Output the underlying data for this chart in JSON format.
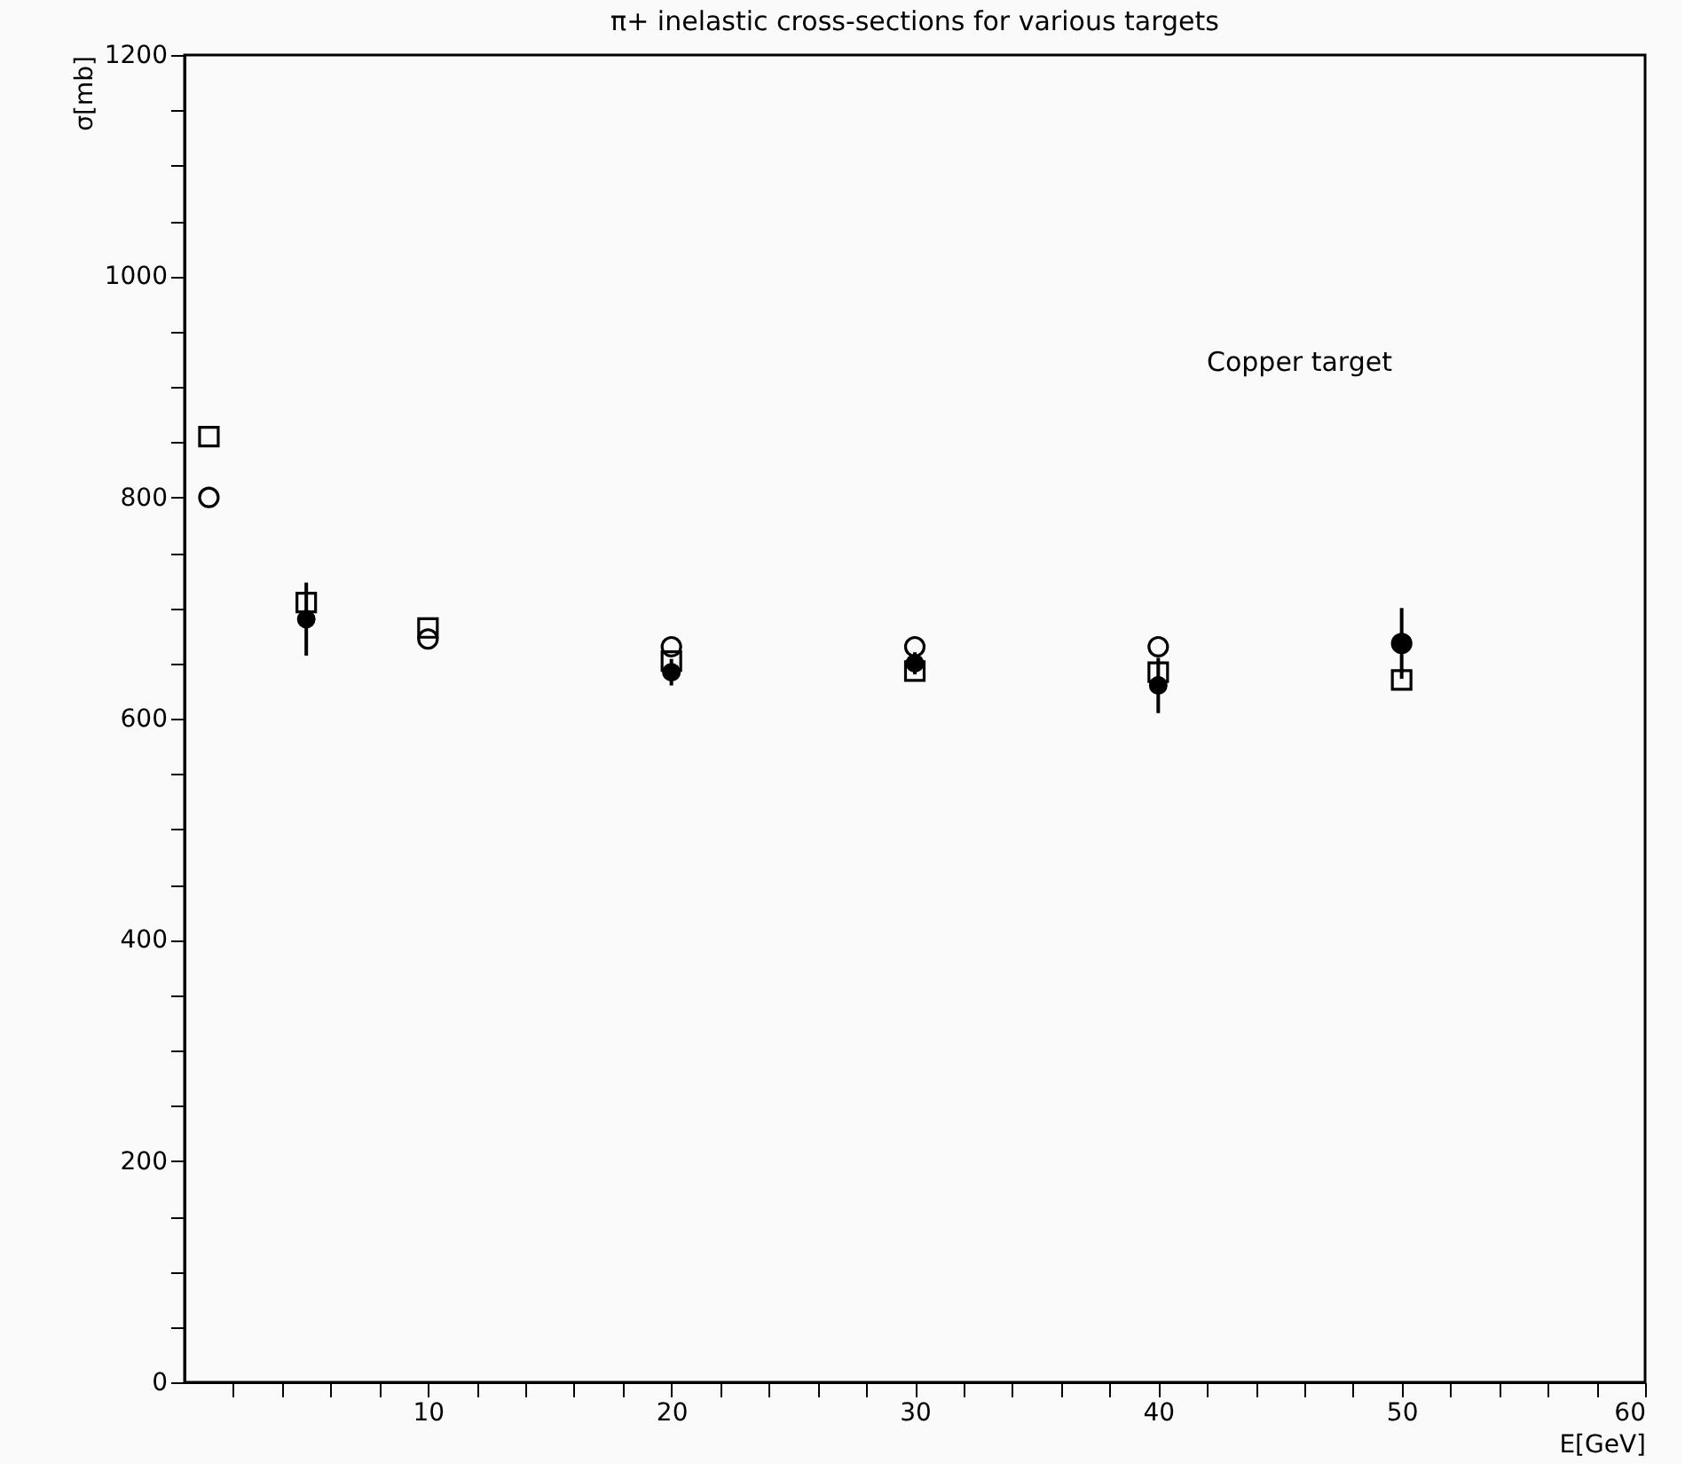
{
  "chart_data": {
    "type": "scatter",
    "title": "π+ inelastic cross-sections for various targets",
    "xlabel": "E[GeV]",
    "ylabel": "σ[mb]",
    "annotations": [
      "Copper target"
    ],
    "xlim": [
      0,
      60
    ],
    "ylim": [
      0,
      1200
    ],
    "xticks": [
      {
        "value": 2,
        "label": null
      },
      {
        "value": 4,
        "label": null
      },
      {
        "value": 6,
        "label": null
      },
      {
        "value": 8,
        "label": null
      },
      10,
      {
        "value": 12,
        "label": null
      },
      {
        "value": 14,
        "label": null
      },
      {
        "value": 16,
        "label": null
      },
      {
        "value": 18,
        "label": null
      },
      20,
      {
        "value": 22,
        "label": null
      },
      {
        "value": 24,
        "label": null
      },
      {
        "value": 26,
        "label": null
      },
      {
        "value": 28,
        "label": null
      },
      30,
      {
        "value": 32,
        "label": null
      },
      {
        "value": 34,
        "label": null
      },
      {
        "value": 36,
        "label": null
      },
      {
        "value": 38,
        "label": null
      },
      40,
      {
        "value": 42,
        "label": null
      },
      {
        "value": 44,
        "label": null
      },
      {
        "value": 46,
        "label": null
      },
      {
        "value": 48,
        "label": null
      },
      50,
      {
        "value": 52,
        "label": null
      },
      {
        "value": 54,
        "label": null
      },
      {
        "value": 56,
        "label": null
      },
      {
        "value": 58,
        "label": null
      },
      60
    ],
    "yticks": [
      0,
      {
        "value": 50,
        "label": null
      },
      {
        "value": 100,
        "label": null
      },
      {
        "value": 150,
        "label": null
      },
      200,
      {
        "value": 250,
        "label": null
      },
      {
        "value": 300,
        "label": null
      },
      {
        "value": 350,
        "label": null
      },
      400,
      {
        "value": 450,
        "label": null
      },
      {
        "value": 500,
        "label": null
      },
      {
        "value": 550,
        "label": null
      },
      600,
      {
        "value": 650,
        "label": null
      },
      {
        "value": 700,
        "label": null
      },
      {
        "value": 750,
        "label": null
      },
      800,
      {
        "value": 850,
        "label": null
      },
      {
        "value": 900,
        "label": null
      },
      {
        "value": 950,
        "label": null
      },
      1000,
      {
        "value": 1050,
        "label": null
      },
      {
        "value": 1100,
        "label": null
      },
      {
        "value": 1150,
        "label": null
      },
      1200
    ],
    "grid": false,
    "series": [
      {
        "color": "#000000",
        "marker": "square",
        "x": [
          1,
          5,
          10,
          20,
          30,
          40,
          50
        ],
        "values": [
          855,
          705,
          682,
          652,
          643,
          642,
          635
        ]
      },
      {
        "color": "#000000",
        "marker": "circle",
        "x": [
          1,
          5,
          10,
          20,
          30,
          40,
          50
        ],
        "values": [
          800,
          null,
          672,
          665,
          665,
          665,
          668
        ]
      },
      {
        "color": "#000000",
        "marker": "circle",
        "x": [
          5,
          20,
          30,
          40,
          50
        ],
        "values": [
          690,
          642,
          650,
          630,
          668
        ],
        "errors": [
          33,
          12,
          10,
          25,
          32
        ]
      }
    ]
  }
}
